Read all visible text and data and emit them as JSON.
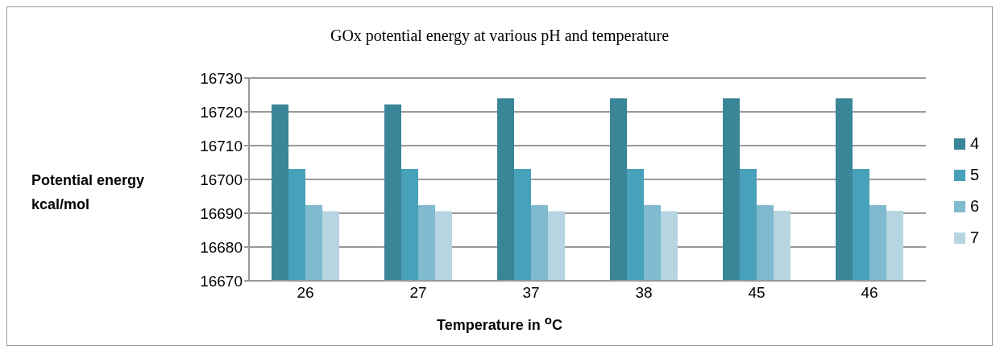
{
  "chart_data": {
    "type": "bar",
    "title": "GOx potential energy at various pH and temperature",
    "xlabel": "Temperature in $^{o}$C",
    "ylabel": "Potential energy kcal/mol",
    "categories": [
      "26",
      "27",
      "37",
      "38",
      "45",
      "46"
    ],
    "series": [
      {
        "name": "4",
        "color": "#3a8598",
        "values": [
          16722.2,
          16722.2,
          16724,
          16724,
          16724,
          16724
        ]
      },
      {
        "name": "5",
        "color": "#48a1ba",
        "values": [
          16703.1,
          16703.1,
          16703.1,
          16703.1,
          16703.1,
          16703.1
        ]
      },
      {
        "name": "6",
        "color": "#7fbacf",
        "values": [
          16692.4,
          16692.4,
          16692.4,
          16692.4,
          16692.4,
          16692.4
        ]
      },
      {
        "name": "7",
        "color": "#b7d5e0",
        "values": [
          16690.6,
          16690.6,
          16690.6,
          16690.6,
          16690.7,
          16690.7
        ]
      }
    ],
    "ylim": [
      16670,
      16730
    ],
    "yticks": [
      16670,
      16680,
      16690,
      16700,
      16710,
      16720,
      16730
    ],
    "grid": "y",
    "legend": "right"
  }
}
